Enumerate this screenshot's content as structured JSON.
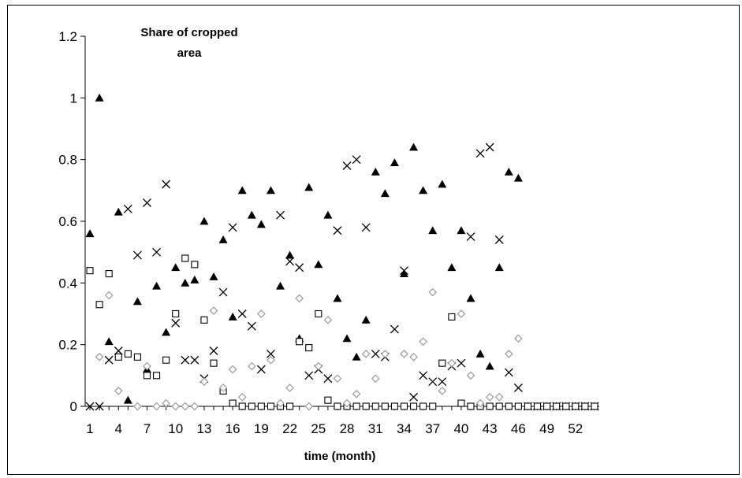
{
  "chart_data": {
    "type": "scatter",
    "title": [
      "Share of cropped",
      "area"
    ],
    "xlabel": "time (month)",
    "ylabel": "",
    "xlim": [
      0.5,
      54.5
    ],
    "ylim": [
      0,
      1.2
    ],
    "y_ticks": [
      "0",
      "0.2",
      "0.4",
      "0.6",
      "0.8",
      "1",
      "1.2"
    ],
    "x_ticks": [
      "1",
      "4",
      "7",
      "10",
      "13",
      "16",
      "19",
      "22",
      "25",
      "28",
      "31",
      "34",
      "37",
      "40",
      "43",
      "46",
      "49",
      "52"
    ],
    "x_tick_values": [
      1,
      4,
      7,
      10,
      13,
      16,
      19,
      22,
      25,
      28,
      31,
      34,
      37,
      40,
      43,
      46,
      49,
      52
    ],
    "grid": false,
    "legend": "none",
    "series": [
      {
        "marker": "filled-triangle",
        "color": "#000000",
        "x": [
          1,
          2,
          3,
          4,
          5,
          6,
          7,
          8,
          9,
          10,
          11,
          12,
          13,
          14,
          15,
          16,
          17,
          18,
          19,
          20,
          21,
          22,
          23,
          24,
          25,
          26,
          27,
          28,
          29,
          30,
          31,
          32,
          33,
          34,
          35,
          36,
          37,
          38,
          39,
          40,
          41,
          42,
          43,
          44,
          45,
          46,
          47,
          48,
          49,
          50,
          51,
          52,
          53,
          54
        ],
        "y": [
          0.56,
          1.0,
          0.21,
          0.63,
          0.02,
          0.34,
          0.12,
          0.39,
          0.24,
          0.45,
          0.4,
          0.41,
          0.6,
          0.42,
          0.54,
          0.29,
          0.7,
          0.62,
          0.59,
          0.7,
          0.39,
          0.49,
          0.22,
          0.71,
          0.46,
          0.62,
          0.35,
          0.22,
          0.16,
          0.28,
          0.76,
          0.69,
          0.79,
          0.43,
          0.84,
          0.7,
          0.57,
          0.72,
          0.45,
          0.57,
          0.35,
          0.17,
          0.13,
          0.45,
          0.76,
          0.74,
          0,
          0,
          0,
          0,
          0,
          0,
          0,
          0
        ]
      },
      {
        "marker": "cross",
        "color": "#000000",
        "x": [
          1,
          2,
          3,
          4,
          5,
          6,
          7,
          8,
          9,
          10,
          11,
          12,
          13,
          14,
          15,
          16,
          17,
          18,
          19,
          20,
          21,
          22,
          23,
          24,
          25,
          26,
          27,
          28,
          29,
          30,
          31,
          32,
          33,
          34,
          35,
          36,
          37,
          38,
          39,
          40,
          41,
          42,
          43,
          44,
          45,
          46,
          47,
          48,
          49,
          50,
          51,
          52,
          53,
          54
        ],
        "y": [
          0,
          0,
          0.15,
          0.18,
          0.64,
          0.49,
          0.66,
          0.5,
          0.72,
          0.27,
          0.15,
          0.15,
          0.09,
          0.18,
          0.37,
          0.58,
          0.3,
          0.26,
          0.12,
          0.17,
          0.62,
          0.47,
          0.45,
          0.1,
          0.12,
          0.09,
          0.57,
          0.78,
          0.8,
          0.58,
          0.17,
          0.16,
          0.25,
          0.44,
          0.03,
          0.1,
          0.08,
          0.08,
          0.13,
          0.14,
          0.55,
          0.82,
          0.84,
          0.54,
          0.11,
          0.06,
          0,
          0,
          0,
          0,
          0,
          0,
          0,
          0
        ]
      },
      {
        "marker": "open-square",
        "color": "#000000",
        "x": [
          1,
          2,
          3,
          4,
          5,
          6,
          7,
          8,
          9,
          10,
          11,
          12,
          13,
          14,
          15,
          16,
          17,
          18,
          19,
          20,
          21,
          22,
          23,
          24,
          25,
          26,
          27,
          28,
          29,
          30,
          31,
          32,
          33,
          34,
          35,
          36,
          37,
          38,
          39,
          40,
          41,
          42,
          43,
          44,
          45,
          46,
          47,
          48,
          49,
          50,
          51,
          52,
          53,
          54
        ],
        "y": [
          0.44,
          0.33,
          0.43,
          0.16,
          0.17,
          0.16,
          0.1,
          0.1,
          0.15,
          0.3,
          0.48,
          0.46,
          0.28,
          0.14,
          0.05,
          0.01,
          0,
          0,
          0,
          0,
          0,
          0,
          0.21,
          0.19,
          0.3,
          0.02,
          0,
          0,
          0,
          0,
          0,
          0,
          0,
          0,
          0,
          0,
          0,
          0.14,
          0.29,
          0.01,
          0,
          0,
          0,
          0,
          0,
          0,
          0,
          0,
          0,
          0,
          0,
          0,
          0,
          0
        ]
      },
      {
        "marker": "open-diamond",
        "color": "#999999",
        "x": [
          2,
          3,
          4,
          6,
          7,
          8,
          9,
          10,
          11,
          12,
          13,
          14,
          15,
          16,
          17,
          18,
          19,
          20,
          21,
          22,
          23,
          24,
          25,
          26,
          27,
          28,
          29,
          30,
          31,
          32,
          34,
          35,
          36,
          37,
          38,
          39,
          40,
          41,
          42,
          43,
          44,
          45,
          46
        ],
        "y": [
          0.16,
          0.36,
          0.05,
          0,
          0.13,
          0,
          0.01,
          0,
          0,
          0,
          0.08,
          0.31,
          0.06,
          0.12,
          0.03,
          0.13,
          0.3,
          0.15,
          0.01,
          0.06,
          0.35,
          0,
          0.13,
          0.28,
          0.09,
          0.01,
          0.04,
          0.17,
          0.09,
          0.17,
          0.17,
          0.16,
          0.21,
          0.37,
          0.05,
          0.14,
          0.3,
          0.1,
          0.01,
          0.03,
          0.03,
          0.17,
          0.22
        ]
      }
    ]
  }
}
